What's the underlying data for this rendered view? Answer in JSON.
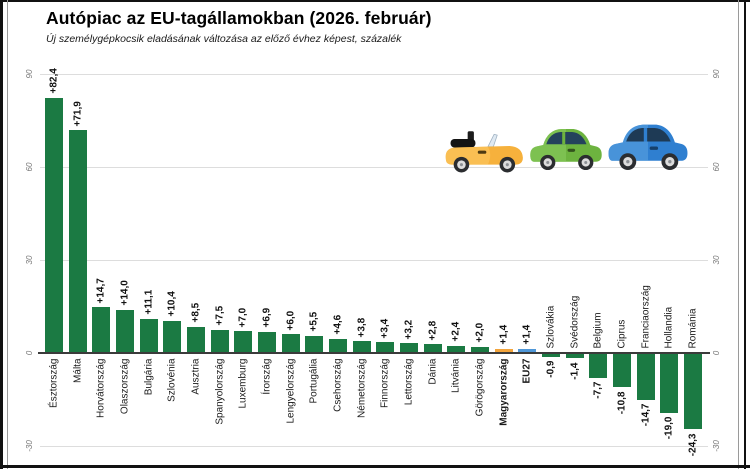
{
  "header": {
    "title": "Autópiac az EU-tagállamokban (2026. február)",
    "subtitle": "Új személygépkocsik eladásának változása az előző évhez képest, százalék"
  },
  "colors": {
    "bar_default": "#1b7a43",
    "bar_hungary": "#f2a43c",
    "bar_eu27": "#4f97d8",
    "axis_line": "#3b3b3b",
    "gridline": "#dddddd"
  },
  "chart_data": {
    "type": "bar",
    "title": "Autópiac az EU-tagállamokban (2026. február)",
    "subtitle": "Új személygépkocsik eladásának változása az előző évhez képest, százalék",
    "categories": [
      "Észtország",
      "Málta",
      "Horvátország",
      "Olaszország",
      "Bulgária",
      "Szlovénia",
      "Ausztria",
      "Spanyolország",
      "Luxemburg",
      "Írország",
      "Lengyelország",
      "Portugália",
      "Csehország",
      "Németország",
      "Finnország",
      "Lettország",
      "Dánia",
      "Litvánia",
      "Görögország",
      "Magyarország",
      "EU27",
      "Szlovákia",
      "Svédország",
      "Belgium",
      "Ciprus",
      "Franciaország",
      "Hollandia",
      "Románia"
    ],
    "values": [
      82.4,
      71.9,
      14.7,
      14.0,
      11.1,
      10.4,
      8.5,
      7.5,
      7.0,
      6.9,
      6.0,
      5.5,
      4.6,
      3.8,
      3.4,
      3.2,
      2.8,
      2.4,
      2.0,
      1.4,
      1.4,
      -0.9,
      -1.4,
      -7.7,
      -10.8,
      -14.7,
      -19.0,
      -24.3
    ],
    "value_labels": [
      "+82,4",
      "+71,9",
      "+14,7",
      "+14,0",
      "+11,1",
      "+10,4",
      "+8,5",
      "+7,5",
      "+7,0",
      "+6,9",
      "+6,0",
      "+5,5",
      "+4,6",
      "+3,8",
      "+3,4",
      "+3,2",
      "+2,8",
      "+2,4",
      "+2,0",
      "+1,4",
      "+1,4",
      "-0,9",
      "-1,4",
      "-7,7",
      "-10,8",
      "-14,7",
      "-19,0",
      "-24,3"
    ],
    "highlighted_categories": {
      "Magyarország": "bar_hungary",
      "EU27": "bar_eu27"
    },
    "bold_categories": [
      "Magyarország",
      "EU27"
    ],
    "xlabel": "",
    "ylabel": "",
    "ylim": [
      -30,
      90
    ],
    "yticks": [
      90,
      60,
      30,
      0,
      -30
    ],
    "ytick_labels": [
      "90",
      "60",
      "30",
      "0",
      "-30"
    ],
    "grid": true,
    "legend": "none",
    "tick_sides": "both"
  },
  "illustration": {
    "cars": [
      "orange-convertible",
      "green-car",
      "blue-car"
    ]
  }
}
